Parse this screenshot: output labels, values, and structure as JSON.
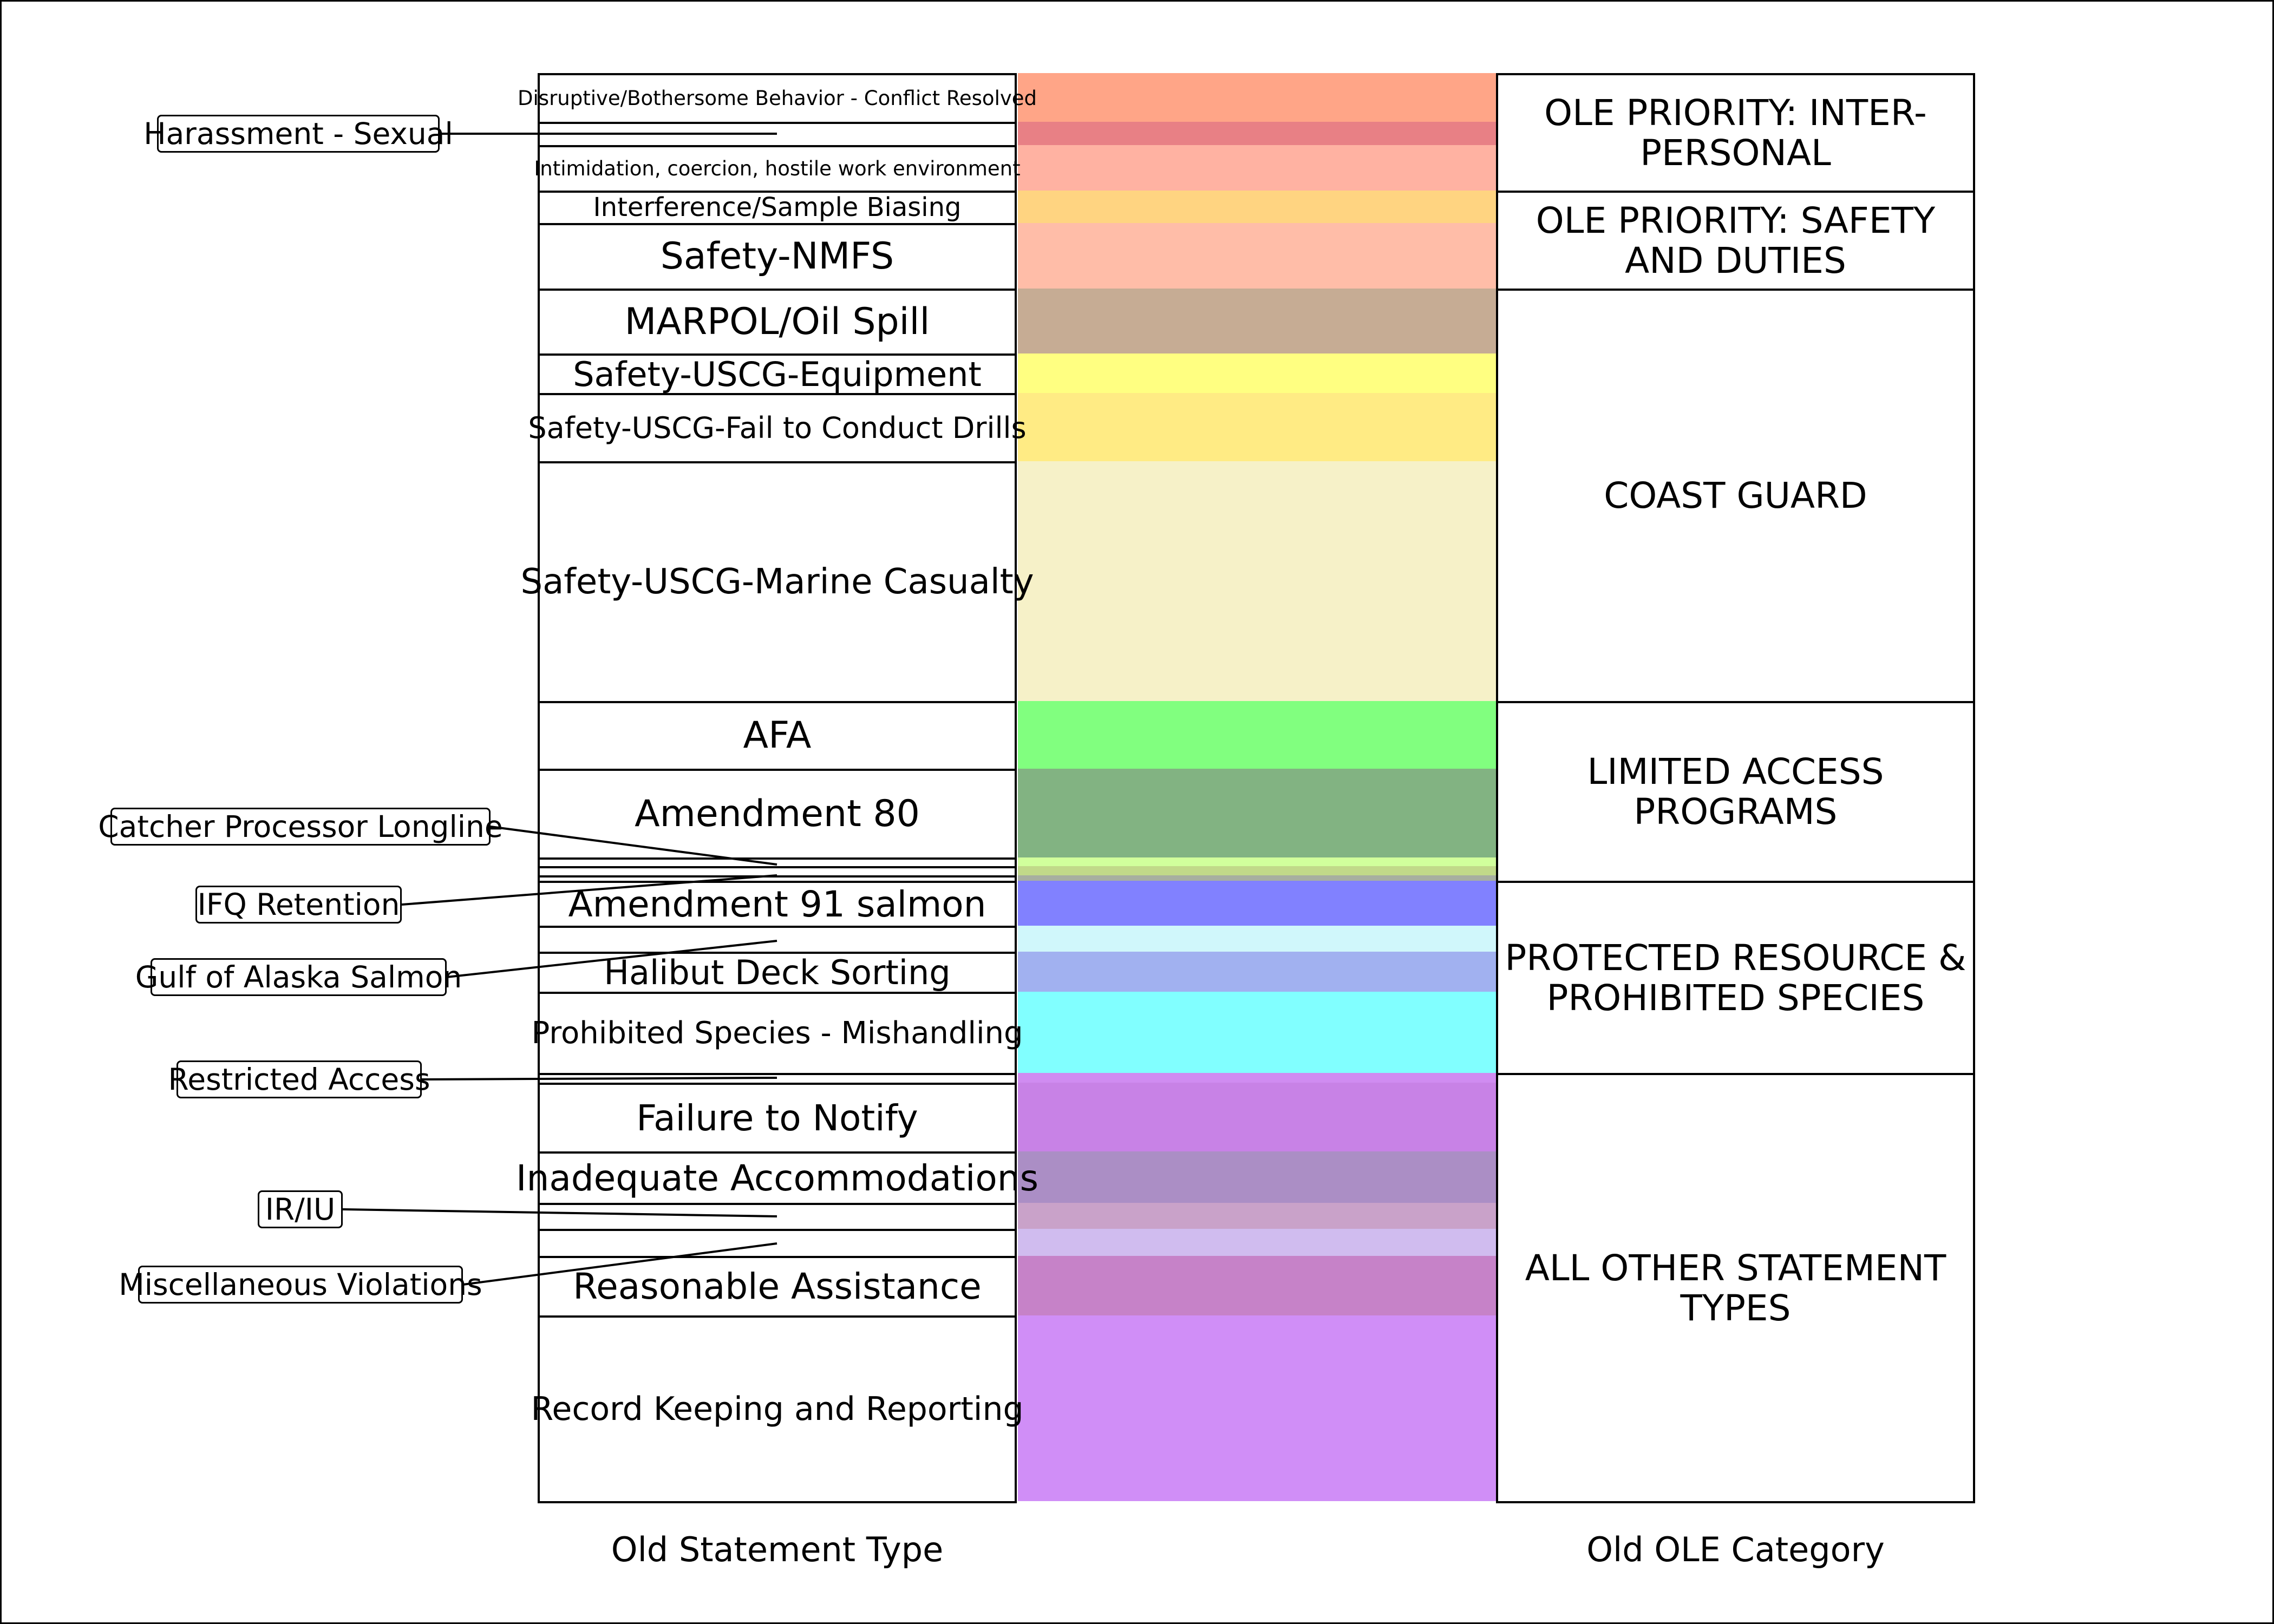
{
  "statement_types": [
    {
      "label": "Disruptive/Bothersome Behavior - Conflict Resolved",
      "color": "#FFA587"
    },
    {
      "label": "",
      "color": "#E88085"
    },
    {
      "label": "Intimidation, coercion, hostile work environment",
      "color": "#FFB2A2"
    },
    {
      "label": "Interference/Sample Biasing",
      "color": "#FFD481"
    },
    {
      "label": "Safety-NMFS",
      "color": "#FFBDA8"
    },
    {
      "label": "MARPOL/Oil Spill",
      "color": "#C6AC94"
    },
    {
      "label": "Safety-USCG-Equipment",
      "color": "#FFFF81"
    },
    {
      "label": "Safety-USCG-Fail to Conduct Drills",
      "color": "#FFEB84"
    },
    {
      "label": "Safety-USCG-Marine Casualty",
      "color": "#F6F1C8"
    },
    {
      "label": "AFA",
      "color": "#81FF7F"
    },
    {
      "label": "Amendment 80",
      "color": "#82B382"
    },
    {
      "label": "",
      "color": "#D1FF9C"
    },
    {
      "label": "",
      "color": "#C1D989"
    },
    {
      "label": "",
      "color": "#A7AFA0"
    },
    {
      "label": "Amendment 91 salmon",
      "color": "#8181FF"
    },
    {
      "label": "",
      "color": "#D0F7FB"
    },
    {
      "label": "Halibut Deck Sorting",
      "color": "#A1B1F0"
    },
    {
      "label": "Prohibited Species - Mishandling",
      "color": "#81FFFF"
    },
    {
      "label": "",
      "color": "#D08CF1"
    },
    {
      "label": "",
      "color": "#B790E4"
    },
    {
      "label": "Failure to Notify",
      "color": "#C882E6"
    },
    {
      "label": "Inadequate Accommodations",
      "color": "#AB8EC5"
    },
    {
      "label": "",
      "color": "#C9A2C9"
    },
    {
      "label": "",
      "color": "#D0BCEF"
    },
    {
      "label": "Reasonable Assistance",
      "color": "#C682C8"
    },
    {
      "label": "Record Keeping and Reporting",
      "color": "#D08EF7"
    }
  ],
  "ole_categories": [
    {
      "label": "OLE PRIORITY: INTER-PERSONAL"
    },
    {
      "label": "OLE PRIORITY: SAFETY AND DUTIES"
    },
    {
      "label": "COAST GUARD"
    },
    {
      "label": "LIMITED ACCESS PROGRAMS"
    },
    {
      "label": "PROTECTED RESOURCE & PROHIBITED SPECIES"
    },
    {
      "label": "ALL OTHER STATEMENT TYPES"
    }
  ],
  "callouts": [
    {
      "label": "Harassment - Sexual"
    },
    {
      "label": "Catcher Processor Longline"
    },
    {
      "label": "IFQ Retention"
    },
    {
      "label": "Gulf of Alaska Salmon"
    },
    {
      "label": "Restricted Access"
    },
    {
      "label": "IR/IU"
    },
    {
      "label": "Miscellaneous Violations"
    }
  ],
  "footer": {
    "left": "Old Statement Type",
    "right": "Old OLE Category"
  }
}
